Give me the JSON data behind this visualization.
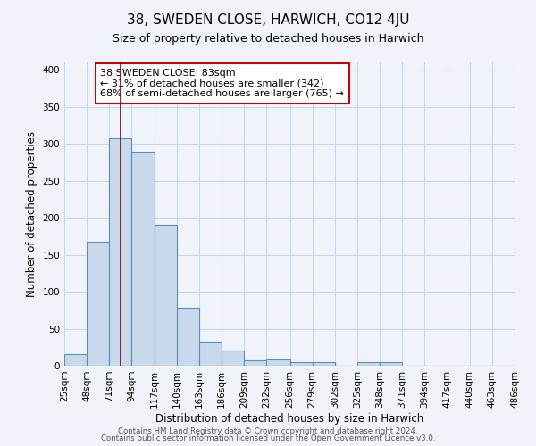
{
  "title": "38, SWEDEN CLOSE, HARWICH, CO12 4JU",
  "subtitle": "Size of property relative to detached houses in Harwich",
  "xlabel": "Distribution of detached houses by size in Harwich",
  "ylabel": "Number of detached properties",
  "bar_values": [
    16,
    168,
    307,
    289,
    191,
    78,
    32,
    20,
    7,
    9,
    5,
    5,
    0,
    5,
    5,
    0,
    0,
    0,
    0,
    0
  ],
  "bin_edges": [
    25,
    48,
    71,
    94,
    117,
    140,
    163,
    186,
    209,
    232,
    256,
    279,
    302,
    325,
    348,
    371,
    394,
    417,
    440,
    463,
    486
  ],
  "tick_labels": [
    "25sqm",
    "48sqm",
    "71sqm",
    "94sqm",
    "117sqm",
    "140sqm",
    "163sqm",
    "186sqm",
    "209sqm",
    "232sqm",
    "256sqm",
    "279sqm",
    "302sqm",
    "325sqm",
    "348sqm",
    "371sqm",
    "394sqm",
    "417sqm",
    "440sqm",
    "463sqm",
    "486sqm"
  ],
  "bar_color": "#c9d9ec",
  "bar_edge_color": "#5b8db8",
  "grid_color": "#c8d8e8",
  "background_color": "#f0f4fa",
  "vline_x": 83,
  "vline_color": "#8b0000",
  "annotation_text": "38 SWEDEN CLOSE: 83sqm\n← 31% of detached houses are smaller (342)\n68% of semi-detached houses are larger (765) →",
  "annotation_box_color": "white",
  "annotation_box_edge": "#cc0000",
  "ylim": [
    0,
    410
  ],
  "yticks": [
    0,
    50,
    100,
    150,
    200,
    250,
    300,
    350,
    400
  ],
  "footer_line1": "Contains HM Land Registry data © Crown copyright and database right 2024.",
  "footer_line2": "Contains public sector information licensed under the Open Government Licence v3.0."
}
